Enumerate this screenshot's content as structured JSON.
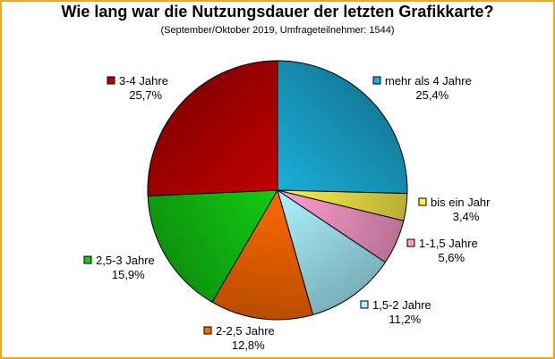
{
  "chart_data": {
    "type": "pie",
    "title": "Wie lang war die Nutzungsdauer der letzten Grafikkarte?",
    "subtitle": "(September/Oktober 2019, Umfrageteilnehmer: 1544)",
    "slices": [
      {
        "label": "mehr als 4 Jahre",
        "value_label": "25,4%",
        "value": 25.4,
        "color": "#1aaed8"
      },
      {
        "label": "bis ein Jahr",
        "value_label": "3,4%",
        "value": 3.4,
        "color": "#fff24a"
      },
      {
        "label": "1-1,5 Jahre",
        "value_label": "5,6%",
        "value": 5.6,
        "color": "#ff9fd0"
      },
      {
        "label": "1,5-2 Jahre",
        "value_label": "11,2%",
        "value": 11.2,
        "color": "#aaf3ff"
      },
      {
        "label": "2-2,5 Jahre",
        "value_label": "12,8%",
        "value": 12.8,
        "color": "#ff6a00"
      },
      {
        "label": "2,5-3 Jahre",
        "value_label": "15,9%",
        "value": 15.9,
        "color": "#12cc12"
      },
      {
        "label": "3-4 Jahre",
        "value_label": "25,7%",
        "value": 25.7,
        "color": "#c00000"
      }
    ]
  }
}
